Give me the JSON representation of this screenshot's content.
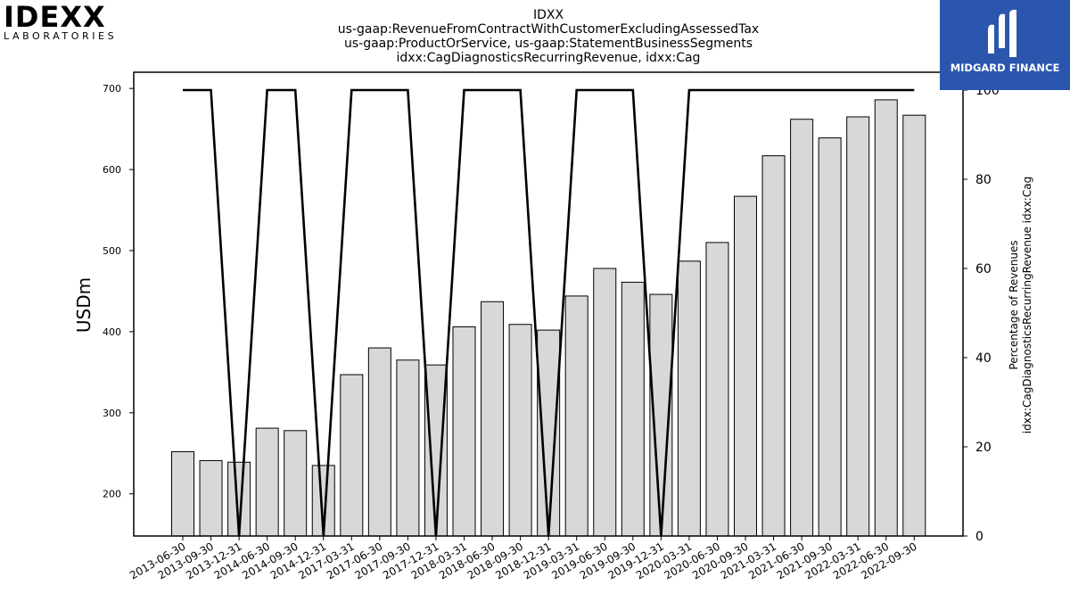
{
  "logos": {
    "left_brand": "IDEXX",
    "left_sub": "LABORATORIES",
    "right_brand": "MIDGARD FINANCE"
  },
  "chart_data": {
    "type": "bar",
    "title": "IDXX",
    "subtitle_lines": [
      "us-gaap:RevenueFromContractWithCustomerExcludingAssessedTax",
      "us-gaap:ProductOrService, us-gaap:StatementBusinessSegments",
      "idxx:CagDiagnosticsRecurringRevenue, idxx:Cag"
    ],
    "xlabel": "",
    "ylabel": "USDm",
    "ylabel_right_lines": [
      "Percentage of Revenues",
      "idxx:CagDiagnosticsRecurringRevenue idxx:Cag"
    ],
    "ylim": [
      148,
      720
    ],
    "ylim_right": [
      0,
      104
    ],
    "yticks": [
      200,
      300,
      400,
      500,
      600,
      700
    ],
    "yticks_right": [
      0,
      20,
      40,
      60,
      80,
      100
    ],
    "grid": false,
    "categories": [
      "2013-06-30",
      "2013-09-30",
      "2013-12-31",
      "2014-06-30",
      "2014-09-30",
      "2014-12-31",
      "2017-03-31",
      "2017-06-30",
      "2017-09-30",
      "2017-12-31",
      "2018-03-31",
      "2018-06-30",
      "2018-09-30",
      "2018-12-31",
      "2019-03-31",
      "2019-06-30",
      "2019-09-30",
      "2019-12-31",
      "2020-03-31",
      "2020-06-30",
      "2020-09-30",
      "2021-03-31",
      "2021-06-30",
      "2021-09-30",
      "2022-03-31",
      "2022-06-30",
      "2022-09-30"
    ],
    "series": [
      {
        "type": "bar",
        "values": [
          252,
          241,
          239,
          281,
          278,
          235,
          347,
          380,
          365,
          359,
          406,
          437,
          409,
          402,
          444,
          478,
          461,
          446,
          487,
          510,
          567,
          617,
          662,
          639,
          665,
          686,
          667
        ],
        "color": "#d8d8d8"
      },
      {
        "type": "line",
        "axis": "right",
        "values": [
          100,
          100,
          0,
          100,
          100,
          0,
          100,
          100,
          100,
          0,
          100,
          100,
          100,
          0,
          100,
          100,
          100,
          0,
          100,
          100,
          100,
          100,
          100,
          100,
          100,
          100,
          100
        ],
        "color": "#000000"
      }
    ]
  }
}
